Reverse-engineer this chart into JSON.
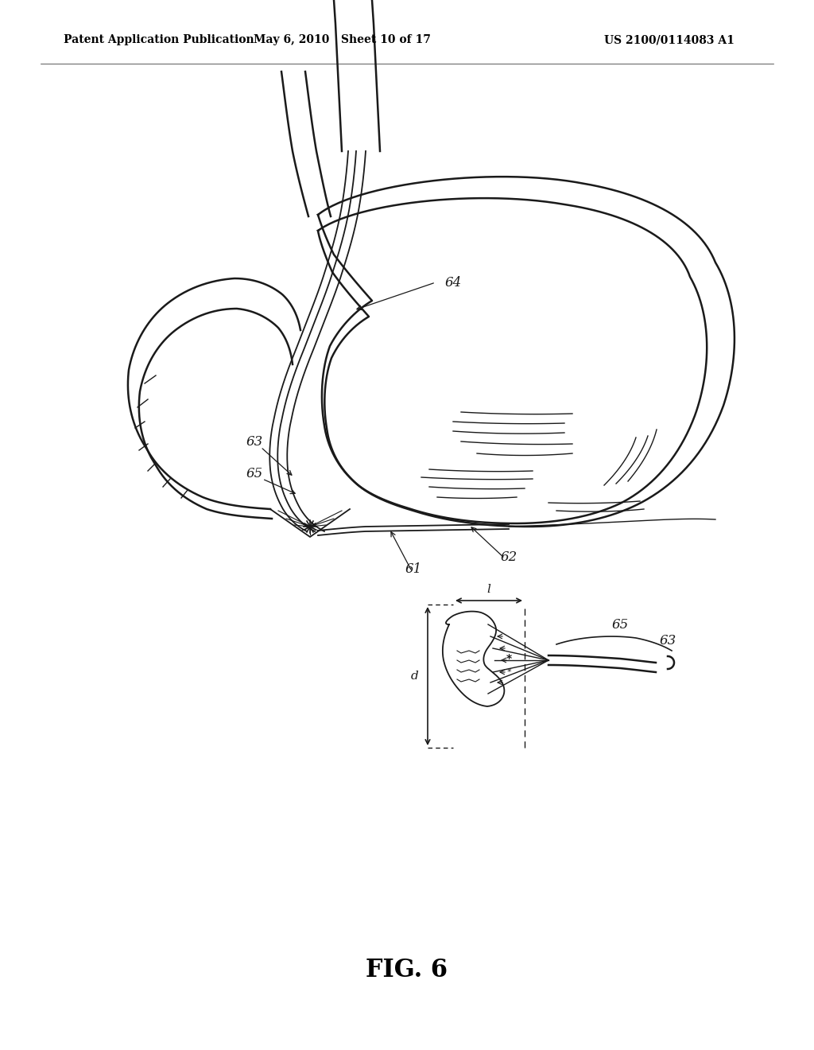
{
  "header_left": "Patent Application Publication",
  "header_mid": "May 6, 2010   Sheet 10 of 17",
  "header_right": "US 2100/0114083 A1",
  "figure_label": "FIG. 6",
  "bg_color": "#ffffff",
  "line_color": "#1a1a1a",
  "header_fontsize": 10,
  "figure_label_fontsize": 22,
  "ann_fontsize": 12
}
